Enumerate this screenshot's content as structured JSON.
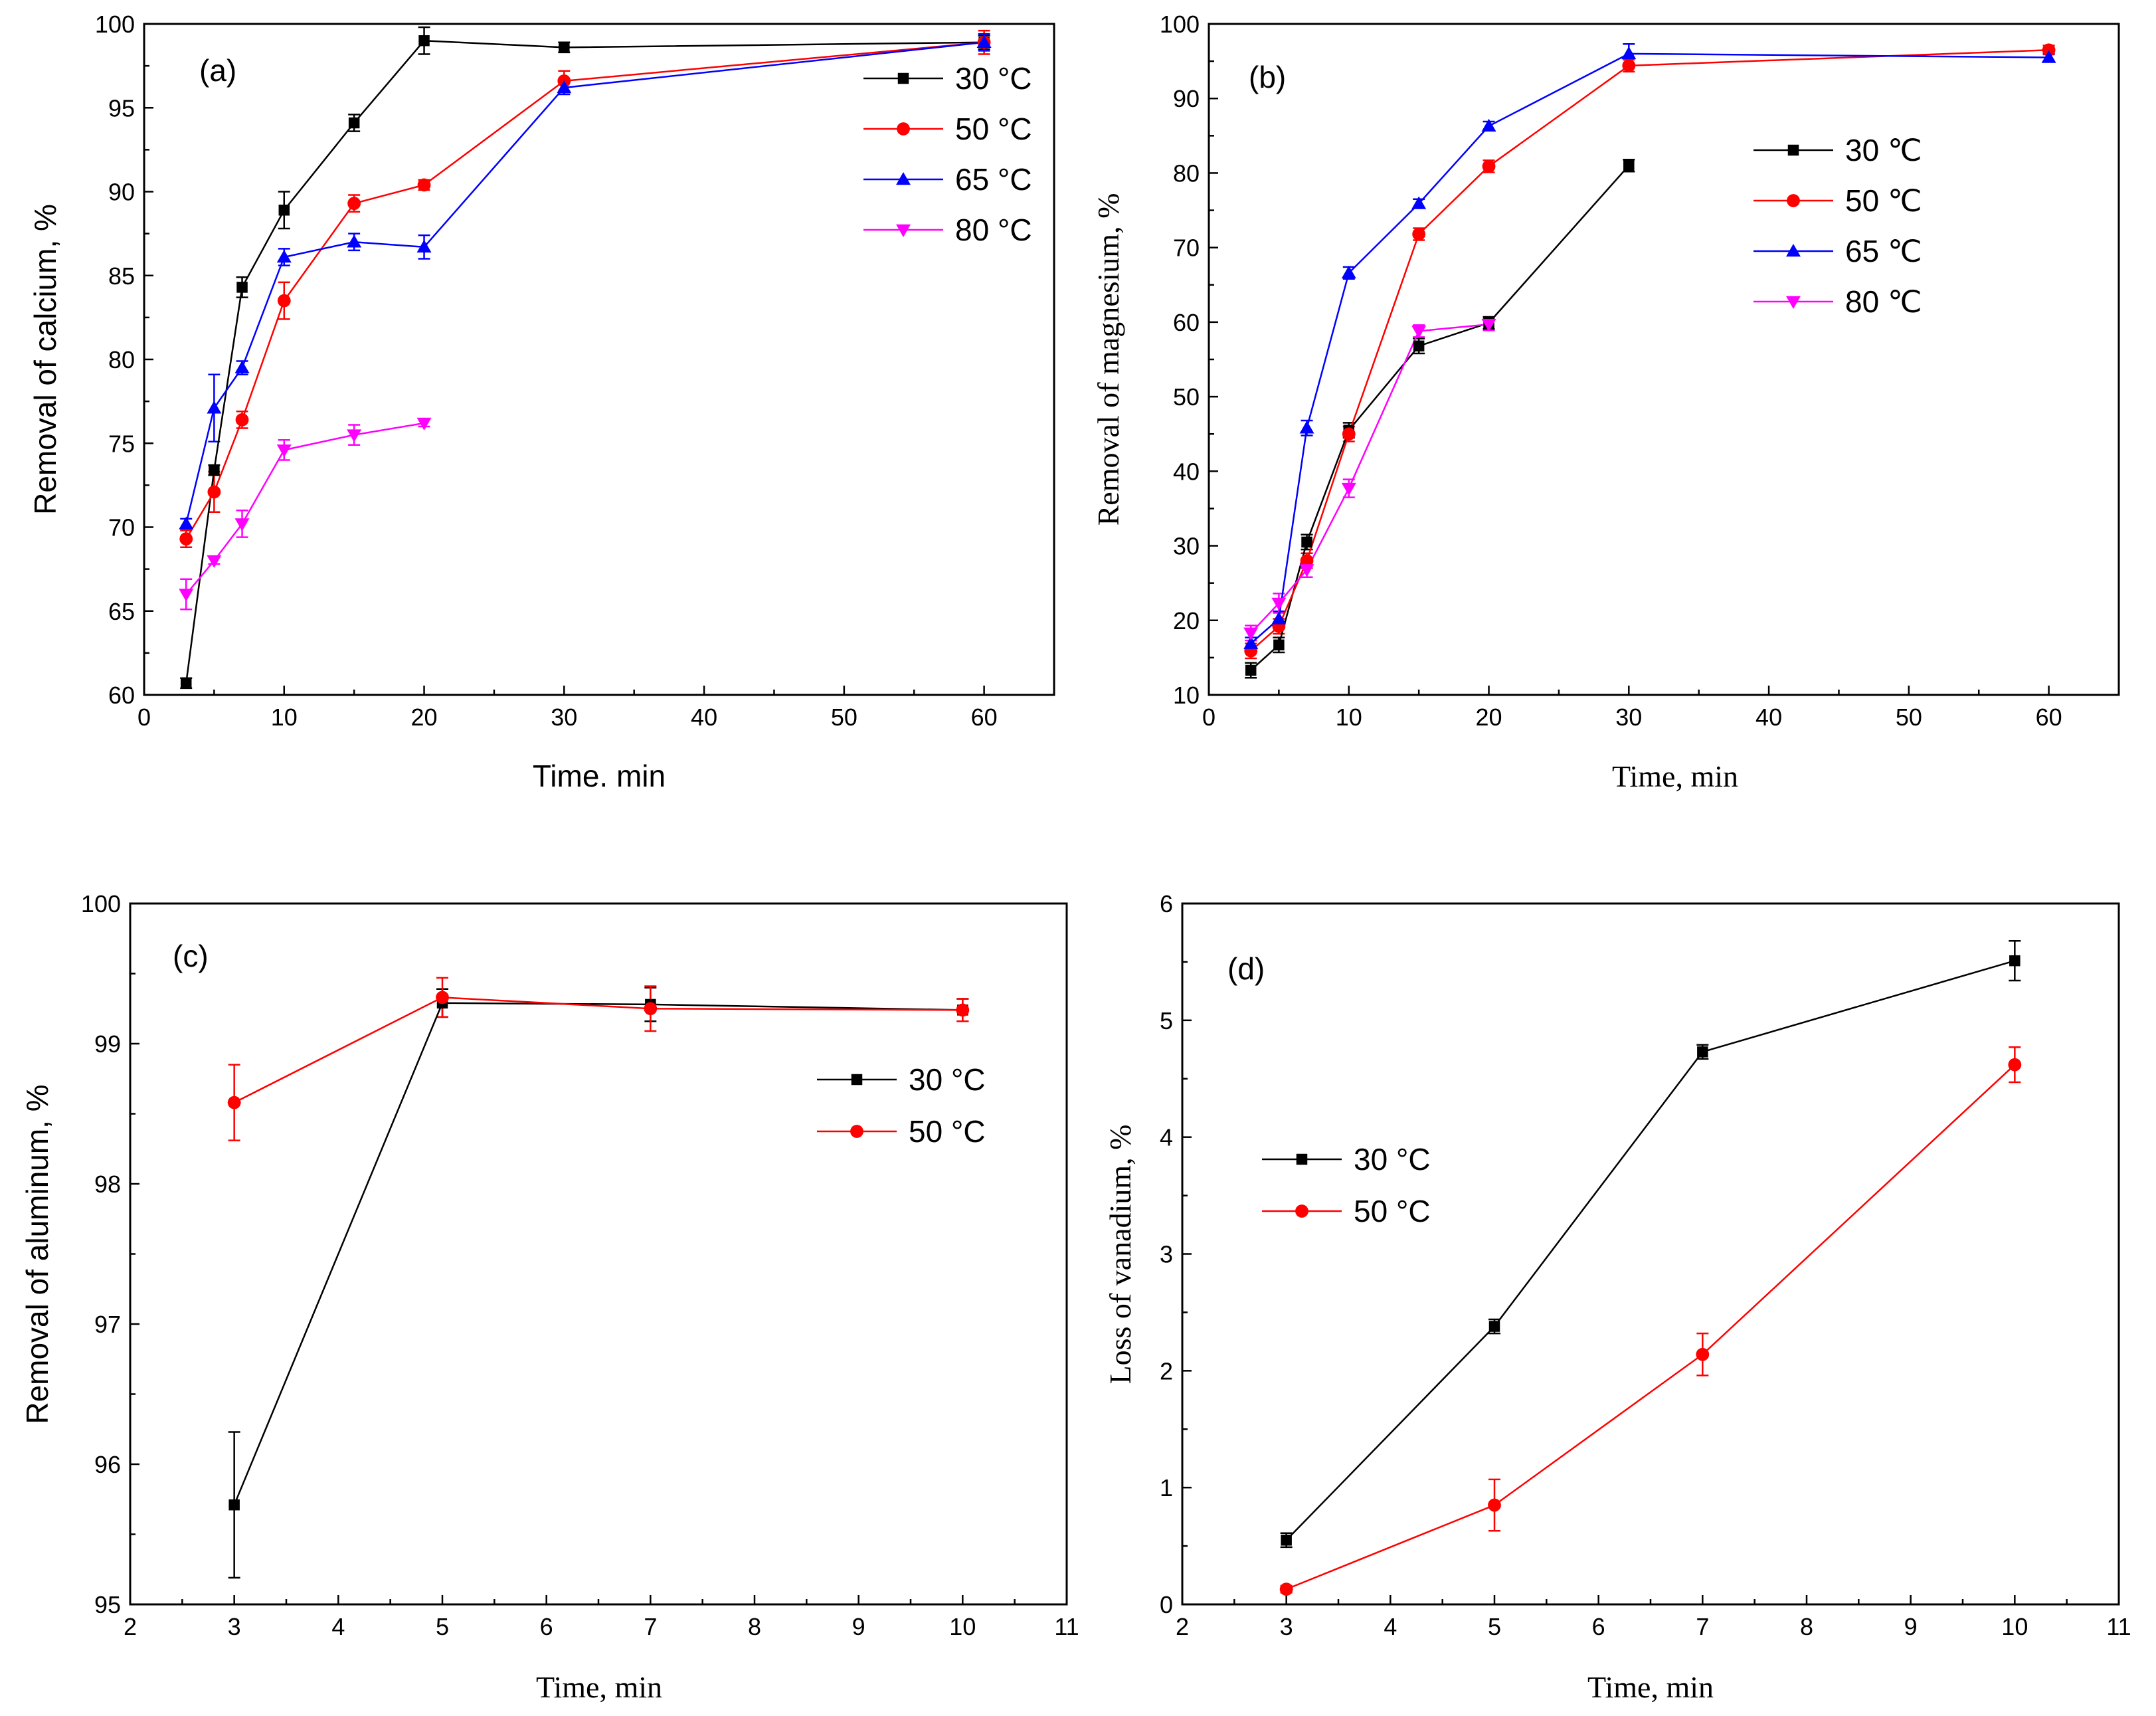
{
  "chart_data": [
    {
      "id": "a",
      "type": "line",
      "panel_label": "(a)",
      "title": "",
      "xlabel": "Time. min",
      "ylabel": "Removal of calcium, %",
      "xlim": [
        0,
        65
      ],
      "ylim": [
        60,
        100
      ],
      "xticks": [
        0,
        10,
        20,
        30,
        40,
        50,
        60
      ],
      "yticks": [
        60,
        65,
        70,
        75,
        80,
        85,
        90,
        95,
        100
      ],
      "legend_position": "top-right",
      "series": [
        {
          "name": "30 °C",
          "color": "#000000",
          "marker": "square",
          "x": [
            3,
            5,
            7,
            10,
            15,
            20,
            30,
            60
          ],
          "y": [
            60.7,
            73.4,
            84.3,
            88.9,
            94.1,
            99.0,
            98.6,
            98.9
          ],
          "err": [
            0.3,
            0.3,
            0.6,
            1.1,
            0.5,
            0.8,
            0.3,
            0.4
          ]
        },
        {
          "name": "50 °C",
          "color": "#ff0000",
          "marker": "circle",
          "x": [
            3,
            5,
            7,
            10,
            15,
            20,
            30,
            60
          ],
          "y": [
            69.3,
            72.1,
            76.4,
            83.5,
            89.3,
            90.4,
            96.6,
            98.9
          ],
          "err": [
            0.5,
            1.2,
            0.5,
            1.1,
            0.5,
            0.3,
            0.6,
            0.7
          ]
        },
        {
          "name": "65 °C",
          "color": "#0000ff",
          "marker": "triangle-up",
          "x": [
            3,
            5,
            7,
            10,
            15,
            20,
            30,
            60
          ],
          "y": [
            70.2,
            77.1,
            79.5,
            86.1,
            87.0,
            86.7,
            96.2,
            98.9
          ],
          "err": [
            0.3,
            2.0,
            0.4,
            0.5,
            0.5,
            0.7,
            0.4,
            0.5
          ]
        },
        {
          "name": "80 °C",
          "color": "#ff00ff",
          "marker": "triangle-down",
          "x": [
            3,
            5,
            7,
            10,
            15,
            20
          ],
          "y": [
            66.0,
            68.0,
            70.2,
            74.6,
            75.5,
            76.2
          ],
          "err": [
            0.9,
            0.2,
            0.8,
            0.6,
            0.6,
            0.2
          ]
        }
      ]
    },
    {
      "id": "b",
      "type": "line",
      "panel_label": "(b)",
      "title": "",
      "xlabel": "Time, min",
      "ylabel": "Removal of magnesium, %",
      "xlim": [
        0,
        65
      ],
      "ylim": [
        10,
        100
      ],
      "xticks": [
        0,
        10,
        20,
        30,
        40,
        50,
        60
      ],
      "yticks": [
        10,
        20,
        30,
        40,
        50,
        60,
        70,
        80,
        90,
        100
      ],
      "legend_position": "middle-right",
      "series": [
        {
          "name": "30 ℃",
          "color": "#000000",
          "marker": "square",
          "x": [
            3,
            5,
            7,
            10,
            15,
            20,
            30
          ],
          "y": [
            13.3,
            16.7,
            30.5,
            45.5,
            56.8,
            59.9,
            81.0
          ],
          "err": [
            1.0,
            1.0,
            1.0,
            1.0,
            1.0,
            0.8,
            0.8
          ]
        },
        {
          "name": "50 ℃",
          "color": "#ff0000",
          "marker": "circle",
          "x": [
            3,
            5,
            7,
            10,
            15,
            20,
            30,
            60
          ],
          "y": [
            15.9,
            19.2,
            28.0,
            45.0,
            71.8,
            80.9,
            94.4,
            96.5
          ],
          "err": [
            1.0,
            1.0,
            1.0,
            1.0,
            0.8,
            0.8,
            0.8,
            0.6
          ]
        },
        {
          "name": "65 ℃",
          "color": "#0000ff",
          "marker": "triangle-up",
          "x": [
            3,
            5,
            7,
            10,
            15,
            20,
            30,
            60
          ],
          "y": [
            16.9,
            20.2,
            45.8,
            66.6,
            75.9,
            86.3,
            96.0,
            95.5
          ],
          "err": [
            0.8,
            1.0,
            1.0,
            0.8,
            0.6,
            0.6,
            1.3,
            0.5
          ]
        },
        {
          "name": "80 ℃",
          "color": "#ff00ff",
          "marker": "triangle-down",
          "x": [
            3,
            5,
            7,
            10,
            15,
            20
          ],
          "y": [
            18.3,
            22.3,
            26.8,
            37.7,
            58.8,
            59.7
          ],
          "err": [
            1.0,
            1.3,
            1.0,
            1.2,
            0.8,
            0.8
          ]
        }
      ]
    },
    {
      "id": "c",
      "type": "line",
      "panel_label": "(c)",
      "title": "",
      "xlabel": "Time, min",
      "ylabel": "Removal of aluminum, %",
      "xlim": [
        2,
        11
      ],
      "ylim": [
        95,
        100
      ],
      "xticks": [
        2,
        3,
        4,
        5,
        6,
        7,
        8,
        9,
        10,
        11
      ],
      "yticks": [
        95,
        96,
        97,
        98,
        99,
        100
      ],
      "legend_position": "upper-right",
      "series": [
        {
          "name": "30 °C",
          "color": "#000000",
          "marker": "square",
          "x": [
            3,
            5,
            7,
            10
          ],
          "y": [
            95.71,
            99.29,
            99.28,
            99.24
          ],
          "err": [
            0.52,
            0.1,
            0.12,
            0.08
          ]
        },
        {
          "name": "50 °C",
          "color": "#ff0000",
          "marker": "circle",
          "x": [
            3,
            5,
            7,
            10
          ],
          "y": [
            98.58,
            99.33,
            99.25,
            99.24
          ],
          "err": [
            0.27,
            0.14,
            0.16,
            0.08
          ]
        }
      ]
    },
    {
      "id": "d",
      "type": "line",
      "panel_label": "(d)",
      "title": "",
      "xlabel": "Time, min",
      "ylabel": "Loss of vanadium, %",
      "xlim": [
        2,
        11
      ],
      "ylim": [
        0,
        6
      ],
      "xticks": [
        2,
        3,
        4,
        5,
        6,
        7,
        8,
        9,
        10,
        11
      ],
      "yticks": [
        0,
        1,
        2,
        3,
        4,
        5,
        6
      ],
      "legend_position": "middle-left",
      "series": [
        {
          "name": "30 °C",
          "color": "#000000",
          "marker": "square",
          "x": [
            3,
            5,
            7,
            10
          ],
          "y": [
            0.55,
            2.38,
            4.73,
            5.51
          ],
          "err": [
            0.06,
            0.06,
            0.06,
            0.17
          ]
        },
        {
          "name": "50 °C",
          "color": "#ff0000",
          "marker": "circle",
          "x": [
            3,
            5,
            7,
            10
          ],
          "y": [
            0.13,
            0.85,
            2.14,
            4.62
          ],
          "err": [
            0.03,
            0.22,
            0.18,
            0.15
          ]
        }
      ]
    }
  ]
}
